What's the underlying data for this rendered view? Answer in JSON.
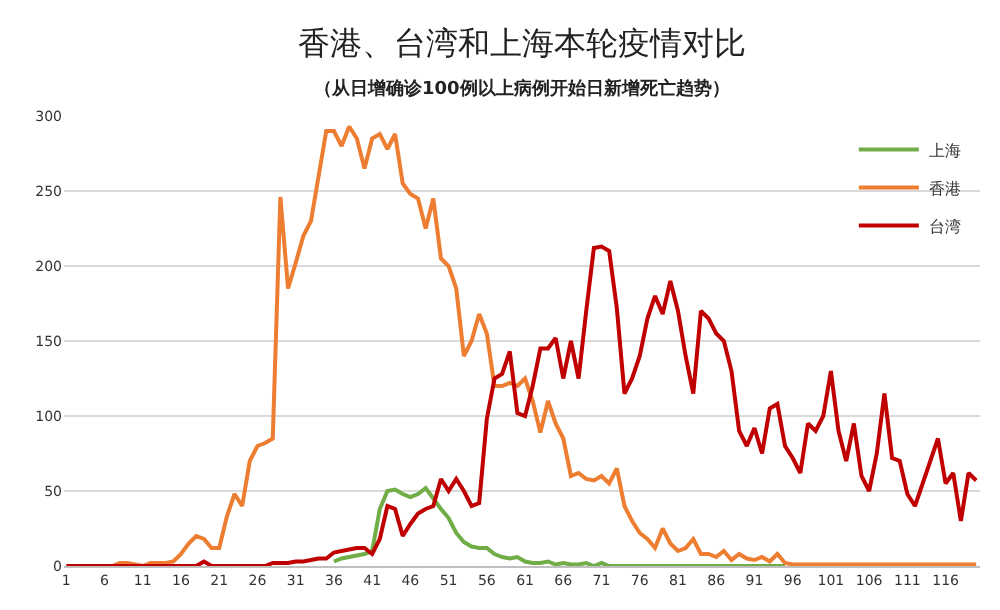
{
  "chart_data": {
    "type": "line",
    "title": "香港、台湾和上海本轮疫情对比",
    "subtitle": "（从日增确诊100例以上病例开始日新增死亡趋势）",
    "x": [
      1,
      2,
      3,
      4,
      5,
      6,
      7,
      8,
      9,
      10,
      11,
      12,
      13,
      14,
      15,
      16,
      17,
      18,
      19,
      20,
      21,
      22,
      23,
      24,
      25,
      26,
      27,
      28,
      29,
      30,
      31,
      32,
      33,
      34,
      35,
      36,
      37,
      38,
      39,
      40,
      41,
      42,
      43,
      44,
      45,
      46,
      47,
      48,
      49,
      50,
      51,
      52,
      53,
      54,
      55,
      56,
      57,
      58,
      59,
      60,
      61,
      62,
      63,
      64,
      65,
      66,
      67,
      68,
      69,
      70,
      71,
      72,
      73,
      74,
      75,
      76,
      77,
      78,
      79,
      80,
      81,
      82,
      83,
      84,
      85,
      86,
      87,
      88,
      89,
      90,
      91,
      92,
      93,
      94,
      95,
      96,
      97,
      98,
      99,
      100,
      101,
      102,
      103,
      104,
      105,
      106,
      107,
      108,
      109,
      110,
      111,
      112,
      113,
      114,
      115,
      116,
      117,
      118,
      119,
      120
    ],
    "series": [
      {
        "name": "上海",
        "color": "#70ad47",
        "values": [
          null,
          null,
          null,
          null,
          null,
          null,
          null,
          null,
          null,
          null,
          null,
          null,
          null,
          null,
          null,
          null,
          null,
          null,
          null,
          null,
          null,
          null,
          null,
          null,
          null,
          null,
          null,
          null,
          null,
          null,
          null,
          null,
          null,
          null,
          null,
          3,
          5,
          6,
          7,
          8,
          10,
          38,
          50,
          51,
          48,
          46,
          48,
          52,
          45,
          38,
          32,
          22,
          16,
          13,
          12,
          12,
          8,
          6,
          5,
          6,
          3,
          2,
          2,
          3,
          1,
          2,
          1,
          1,
          2,
          0,
          2,
          0,
          0,
          0,
          0,
          0,
          0,
          0,
          0,
          0,
          0,
          0,
          0,
          0,
          0,
          0,
          0,
          0,
          0,
          0,
          0,
          0,
          0,
          0,
          0,
          null,
          null,
          null,
          null,
          null,
          null,
          null,
          null,
          null,
          null,
          null,
          null,
          null,
          null,
          null,
          null,
          null,
          null,
          null,
          null,
          null,
          null,
          null,
          null,
          null
        ]
      },
      {
        "name": "香港",
        "color": "#ed7d31",
        "values": [
          null,
          null,
          null,
          null,
          null,
          null,
          0,
          2,
          2,
          1,
          0,
          2,
          2,
          2,
          3,
          8,
          15,
          20,
          18,
          12,
          12,
          33,
          48,
          40,
          70,
          80,
          82,
          85,
          246,
          185,
          202,
          220,
          230,
          260,
          290,
          290,
          280,
          293,
          285,
          265,
          285,
          288,
          278,
          288,
          255,
          248,
          245,
          225,
          245,
          205,
          200,
          185,
          140,
          150,
          168,
          155,
          120,
          120,
          122,
          120,
          125,
          110,
          89,
          110,
          95,
          85,
          60,
          62,
          58,
          57,
          60,
          55,
          65,
          40,
          30,
          22,
          18,
          12,
          25,
          15,
          10,
          12,
          18,
          8,
          8,
          6,
          10,
          4,
          8,
          5,
          4,
          6,
          3,
          8,
          2,
          1,
          1,
          1,
          1,
          1,
          1,
          1,
          1,
          1,
          1,
          1,
          1,
          1,
          1,
          1,
          1,
          1,
          1,
          1,
          1,
          1,
          1,
          1,
          1,
          1
        ]
      },
      {
        "name": "台湾",
        "color": "#c00000",
        "values": [
          0,
          0,
          0,
          0,
          0,
          0,
          0,
          0,
          0,
          0,
          0,
          0,
          0,
          0,
          0,
          0,
          0,
          0,
          3,
          0,
          0,
          0,
          0,
          0,
          0,
          0,
          0,
          2,
          2,
          2,
          3,
          3,
          4,
          5,
          5,
          9,
          10,
          11,
          12,
          12,
          8,
          18,
          40,
          38,
          20,
          28,
          35,
          38,
          40,
          58,
          50,
          58,
          50,
          40,
          42,
          98,
          125,
          128,
          143,
          102,
          100,
          120,
          145,
          145,
          152,
          125,
          150,
          125,
          170,
          212,
          213,
          210,
          172,
          115,
          125,
          140,
          165,
          180,
          168,
          190,
          170,
          140,
          115,
          170,
          165,
          155,
          150,
          130,
          90,
          80,
          92,
          75,
          105,
          108,
          80,
          72,
          62,
          95,
          90,
          100,
          130,
          90,
          70,
          95,
          60,
          50,
          75,
          115,
          72,
          70,
          48,
          40,
          55,
          70,
          85,
          55,
          62,
          30,
          62,
          57
        ]
      }
    ],
    "xlim": [
      0.7,
      120.5
    ],
    "xticks": [
      1,
      6,
      11,
      16,
      21,
      26,
      31,
      36,
      41,
      46,
      51,
      56,
      61,
      66,
      71,
      76,
      81,
      86,
      91,
      96,
      101,
      106,
      111,
      116
    ],
    "ylim": [
      0,
      300
    ],
    "yticks": [
      0,
      50,
      100,
      150,
      200,
      250,
      300
    ],
    "grid": "y",
    "legend": "top right",
    "marker": "none",
    "line_style": "solid"
  }
}
